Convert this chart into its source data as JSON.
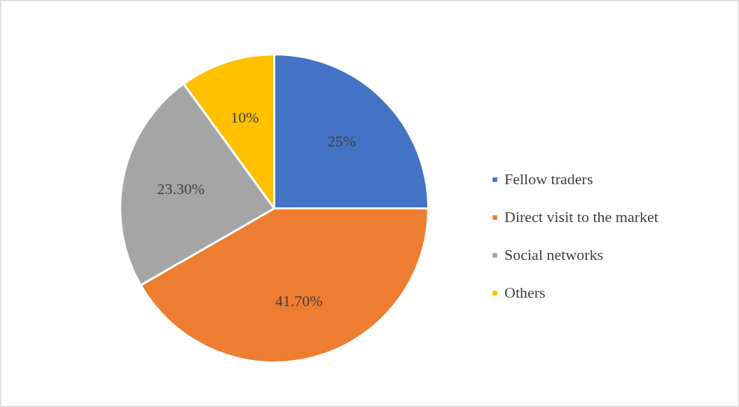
{
  "chart_data": {
    "type": "pie",
    "categories": [
      "Fellow traders",
      "Direct visit to the market",
      "Social networks",
      "Others"
    ],
    "values": [
      25,
      41.7,
      23.3,
      10
    ],
    "colors": [
      "#4472c4",
      "#ed7d31",
      "#a5a5a5",
      "#ffc000"
    ],
    "value_labels": [
      "25%",
      "41.70%",
      "23.30%",
      "10%"
    ],
    "legend": "right"
  }
}
